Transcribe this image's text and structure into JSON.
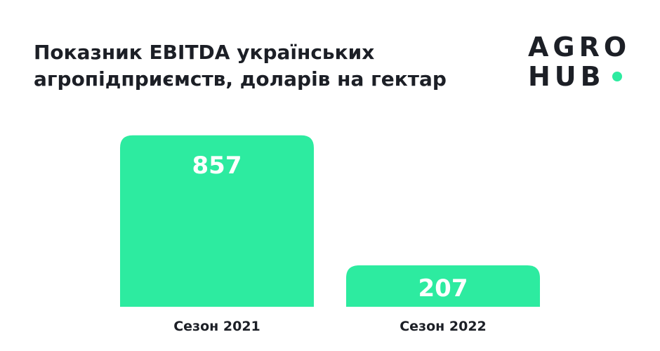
{
  "title_lines": [
    "Показник EBITDA українських",
    "агропідприємств, доларів на гектар"
  ],
  "logo": {
    "line1": "AGRO",
    "line2": "HUB",
    "dot_color": "#2deba0"
  },
  "colors": {
    "bar": "#2deba0",
    "text": "#1c1f26"
  },
  "chart_data": {
    "type": "bar",
    "title": "Показник EBITDA українських агропідприємств, доларів на гектар",
    "categories": [
      "Сезон 2021",
      "Сезон 2022"
    ],
    "values": [
      857,
      207
    ],
    "data_labels": [
      "857",
      "207"
    ],
    "grid": false,
    "legend": "none"
  }
}
